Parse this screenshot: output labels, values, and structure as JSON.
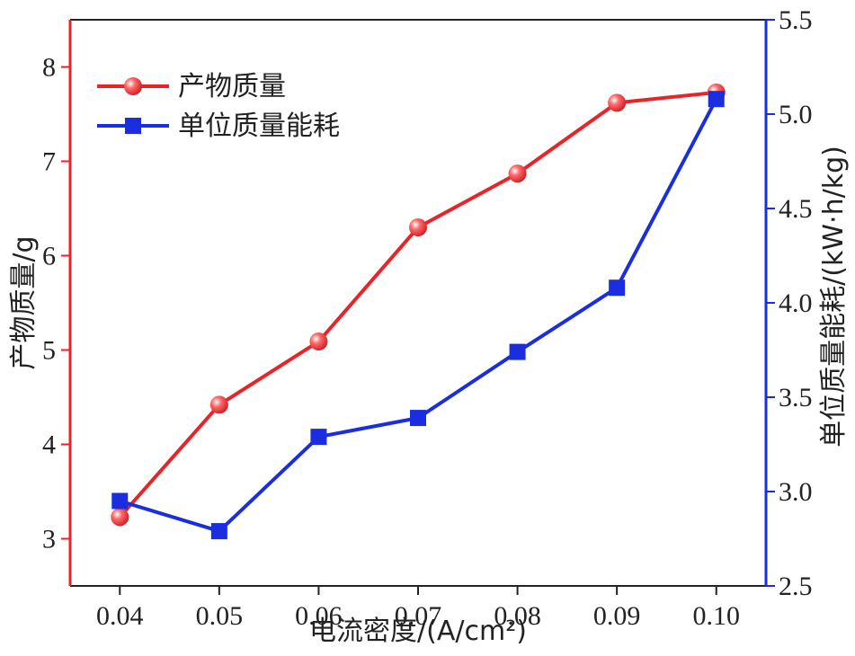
{
  "chart_data": {
    "type": "line",
    "x": [
      0.04,
      0.05,
      0.06,
      0.07,
      0.08,
      0.09,
      0.1
    ],
    "x_tick_labels": [
      "0.04",
      "0.05",
      "0.06",
      "0.07",
      "0.08",
      "0.09",
      "0.10"
    ],
    "xlim": [
      0.035,
      0.105
    ],
    "xlabel": "电流密度/(A/cm²)",
    "ylabel_left": "产物质量/g",
    "ylim_left": [
      2.5,
      8.5
    ],
    "y_left_ticks": [
      "3",
      "4",
      "5",
      "6",
      "7",
      "8"
    ],
    "ylabel_right": "单位质量能耗/(kW·h/kg)",
    "ylim_right": [
      2.5,
      5.5
    ],
    "y_right_ticks": [
      "2.5",
      "3.0",
      "3.5",
      "4.0",
      "4.5",
      "5.0",
      "5.5"
    ],
    "series": [
      {
        "name": "产物质量",
        "axis": "left",
        "color": "#e8242a",
        "marker": "sphere",
        "values": [
          3.23,
          4.42,
          5.09,
          6.3,
          6.87,
          7.62,
          7.73
        ]
      },
      {
        "name": "单位质量能耗",
        "axis": "right",
        "color": "#1a2ee0",
        "marker": "square",
        "values": [
          2.95,
          2.79,
          3.29,
          3.39,
          3.74,
          4.08,
          5.08
        ]
      }
    ],
    "legend_position": "top-left",
    "grid": false,
    "left_axis_color": "#e8242a",
    "right_axis_color": "#1a2ee0"
  }
}
